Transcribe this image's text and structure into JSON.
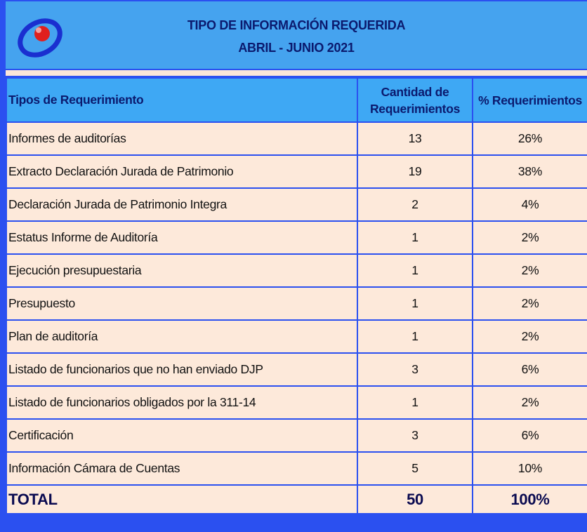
{
  "header": {
    "title": "TIPO DE INFORMACIÓN REQUERIDA",
    "subtitle": "ABRIL - JUNIO 2021"
  },
  "table": {
    "columns": [
      "Tipos de Requerimiento",
      "Cantidad de Requerimientos",
      "% Requerimientos"
    ],
    "rows": [
      [
        "Informes de auditorías",
        13,
        "26%"
      ],
      [
        "Extracto Declaración Jurada de Patrimonio",
        19,
        "38%"
      ],
      [
        "Declaración Jurada de Patrimonio Integra",
        2,
        "4%"
      ],
      [
        "Estatus Informe de Auditoría",
        1,
        "2%"
      ],
      [
        "Ejecución presupuestaria",
        1,
        "2%"
      ],
      [
        "Presupuesto",
        1,
        "2%"
      ],
      [
        "Plan de auditoría",
        1,
        "2%"
      ],
      [
        "Listado de funcionarios que no han enviado DJP",
        3,
        "6%"
      ],
      [
        "Listado de funcionarios obligados por la 311-14",
        1,
        "2%"
      ],
      [
        "Certificación",
        3,
        "6%"
      ],
      [
        "Información Cámara de Cuentas",
        5,
        "10%"
      ]
    ],
    "total": [
      "TOTAL",
      50,
      "100%"
    ]
  }
}
